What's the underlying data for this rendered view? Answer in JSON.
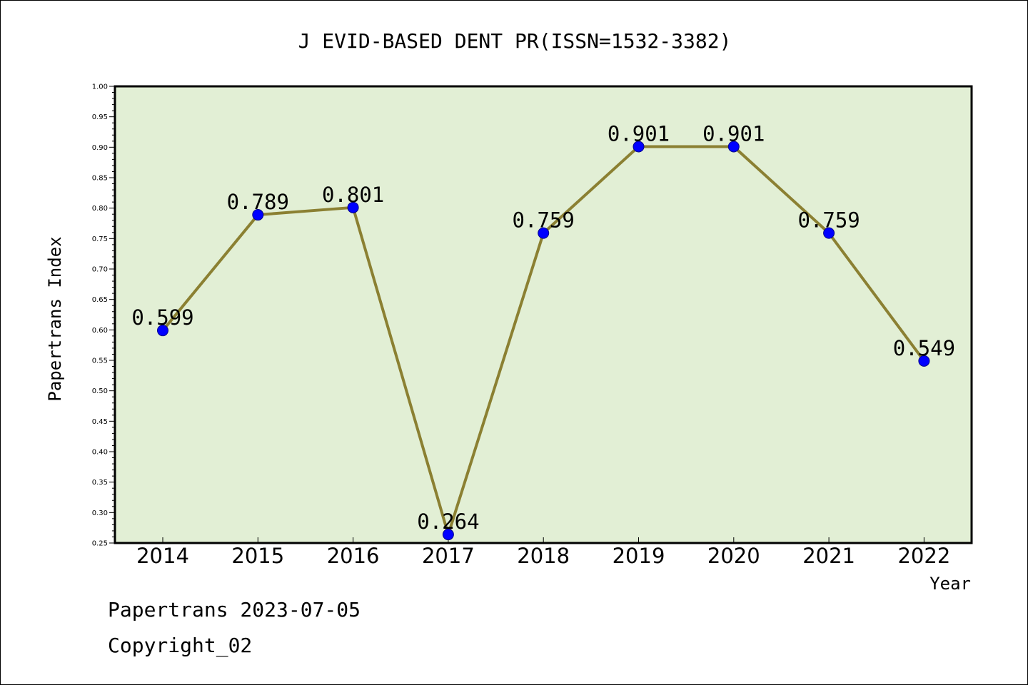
{
  "chart_data": {
    "type": "line",
    "title": "J EVID-BASED DENT PR(ISSN=1532-3382)",
    "xlabel": "Year",
    "ylabel": "Papertrans Index",
    "categories": [
      "2014",
      "2015",
      "2016",
      "2017",
      "2018",
      "2019",
      "2020",
      "2021",
      "2022"
    ],
    "values": [
      0.599,
      0.789,
      0.801,
      0.264,
      0.759,
      0.901,
      0.901,
      0.759,
      0.549
    ],
    "value_labels": [
      "0.599",
      "0.789",
      "0.801",
      "0.264",
      "0.759",
      "0.901",
      "0.901",
      "0.759",
      "0.549"
    ],
    "ylim": [
      0.25,
      1.0
    ],
    "yticks": [
      "0.25",
      "0.30",
      "0.35",
      "0.40",
      "0.45",
      "0.50",
      "0.55",
      "0.60",
      "0.65",
      "0.70",
      "0.75",
      "0.80",
      "0.85",
      "0.90",
      "0.95",
      "1.00"
    ],
    "grid": false,
    "legend": false
  },
  "footer": {
    "line1": "Papertrans 2023-07-05",
    "line2": "Copyright_02"
  },
  "colors": {
    "plot_background": "#e2efd5",
    "line": "#8b8032",
    "marker": "#0000ff",
    "axis": "#000000"
  }
}
